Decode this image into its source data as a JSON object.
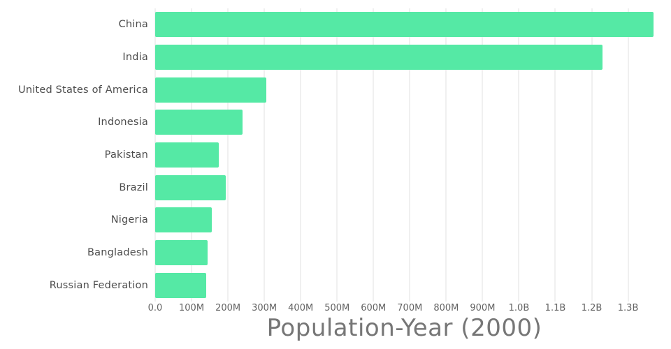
{
  "chart_data": {
    "type": "bar",
    "orientation": "horizontal",
    "title": "Population-Year (2000)",
    "xlabel": "",
    "ylabel": "",
    "categories": [
      "China",
      "India",
      "United States of America",
      "Indonesia",
      "Pakistan",
      "Brazil",
      "Nigeria",
      "Bangladesh",
      "Russian Federation"
    ],
    "values": [
      1370000000,
      1230000000,
      305000000,
      240000000,
      175000000,
      195000000,
      155000000,
      145000000,
      140000000
    ],
    "xlim": [
      0,
      1370000000
    ],
    "x_ticks": [
      {
        "value": 0,
        "label": "0.0"
      },
      {
        "value": 100000000,
        "label": "100M"
      },
      {
        "value": 200000000,
        "label": "200M"
      },
      {
        "value": 300000000,
        "label": "300M"
      },
      {
        "value": 400000000,
        "label": "400M"
      },
      {
        "value": 500000000,
        "label": "500M"
      },
      {
        "value": 600000000,
        "label": "600M"
      },
      {
        "value": 700000000,
        "label": "700M"
      },
      {
        "value": 800000000,
        "label": "800M"
      },
      {
        "value": 900000000,
        "label": "900M"
      },
      {
        "value": 1000000000,
        "label": "1.0B"
      },
      {
        "value": 1100000000,
        "label": "1.1B"
      },
      {
        "value": 1200000000,
        "label": "1.2B"
      },
      {
        "value": 1300000000,
        "label": "1.3B"
      }
    ],
    "grid": true,
    "legend": false,
    "colors": {
      "bar": "#55e9a5",
      "gridline": "#e2e2e2",
      "category_label": "#4d4d4d",
      "tick_label": "#636363",
      "title": "#767676",
      "background": "#ffffff"
    }
  }
}
